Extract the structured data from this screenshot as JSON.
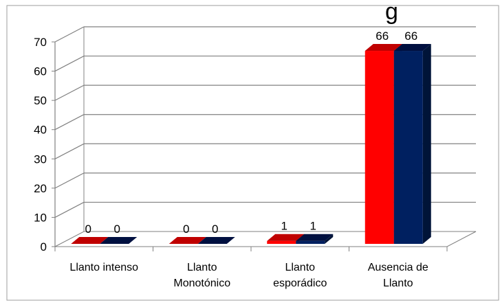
{
  "chart_data": {
    "type": "bar",
    "title": "",
    "xlabel": "",
    "ylabel": "",
    "ylim": [
      0,
      70
    ],
    "yticks": [
      0,
      10,
      20,
      30,
      40,
      50,
      60,
      70
    ],
    "categories": [
      {
        "lines": [
          "Llanto intenso"
        ]
      },
      {
        "lines": [
          "Llanto",
          "Monotónico"
        ]
      },
      {
        "lines": [
          "Llanto",
          "esporádico"
        ]
      },
      {
        "lines": [
          "Ausencia de",
          "Llanto"
        ]
      }
    ],
    "series": [
      {
        "values": [
          0,
          0,
          1,
          66
        ],
        "color": "#ff0000",
        "top_color": "#c00000"
      },
      {
        "values": [
          0,
          0,
          1,
          66
        ],
        "color": "#002060",
        "top_color": "#001040",
        "side_color": "#001438"
      }
    ],
    "grid": true,
    "legend": "none",
    "three_d": true
  },
  "clipped_title_fragment": "g"
}
